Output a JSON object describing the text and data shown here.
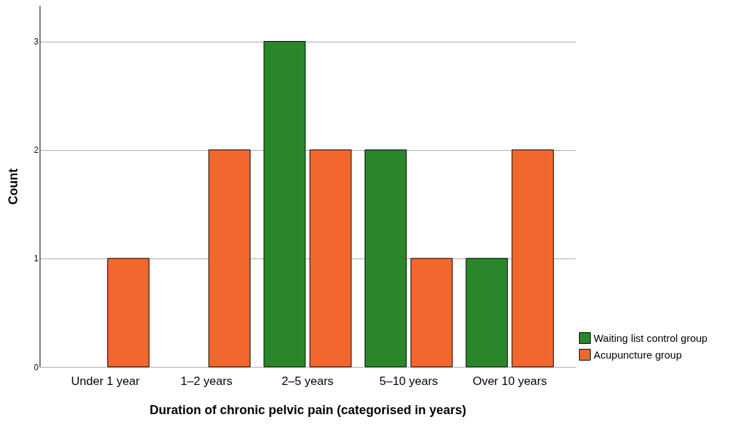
{
  "chart_data": {
    "type": "bar",
    "xlabel": "Duration of chronic pelvic pain (categorised in years)",
    "ylabel": "Count",
    "categories": [
      "Under 1 year",
      "1–2 years",
      "2–5 years",
      "5–10 years",
      "Over 10 years"
    ],
    "series": [
      {
        "name": "Waiting list control group",
        "color": "#2a862a",
        "values": [
          null,
          null,
          3,
          2,
          1
        ]
      },
      {
        "name": "Acupuncture group",
        "color": "#f2672e",
        "values": [
          1,
          2,
          2,
          1,
          2
        ]
      }
    ],
    "ylim": [
      0,
      3.33
    ],
    "yticks": [
      0,
      1,
      2,
      3
    ],
    "grid": "y",
    "legend": "bottom right"
  }
}
